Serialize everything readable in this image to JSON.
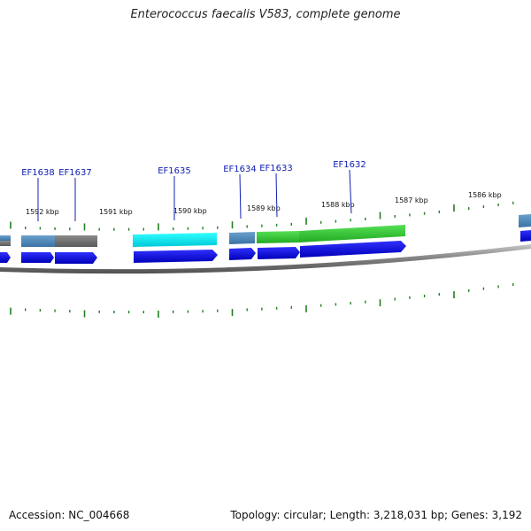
{
  "title": "Enterococcus faecalis V583, complete genome",
  "footer": {
    "accession": "Accession: NC_004668",
    "summary": "Topology: circular; Length: 3,218,031 bp; Genes: 3,192"
  },
  "colors": {
    "cds_blue": "#0000e0",
    "steelblue": "#4a86b8",
    "gray": "#707070",
    "cyan": "#00e8e8",
    "green": "#33cc33",
    "tick_green": "#208020",
    "gene_label": "#1020b0"
  },
  "tick_labels": [
    "1592 kbp",
    "1591 kbp",
    "1590 kbp",
    "1589 kbp",
    "1588 kbp",
    "1587 kbp",
    "1586 kbp"
  ],
  "gene_labels": [
    "EF1638",
    "EF1637",
    "EF1635",
    "EF1634",
    "EF1633",
    "EF1632"
  ]
}
